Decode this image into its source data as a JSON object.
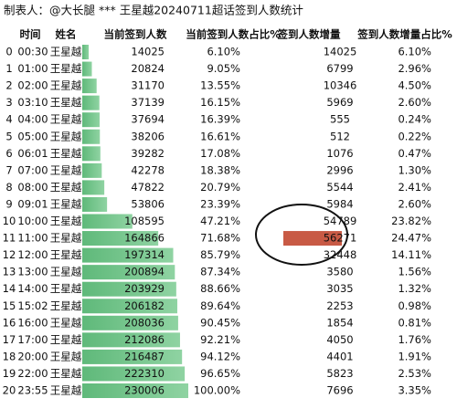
{
  "header": {
    "title": "制表人：@大长腿 *** 王星越20240711超话签到人数统计"
  },
  "table": {
    "columns": [
      "时间",
      "姓名",
      "当前签到人数",
      "当前签到人数占比%",
      "签到人数增量",
      "签到人数增量占比%"
    ],
    "rows": [
      [
        0,
        "00:30",
        "王星越",
        14025,
        "6.10%",
        14025,
        "6.10%"
      ],
      [
        1,
        "01:00",
        "王星越",
        20824,
        "9.05%",
        6799,
        "2.96%"
      ],
      [
        2,
        "02:00",
        "王星越",
        31170,
        "13.55%",
        10346,
        "4.50%"
      ],
      [
        3,
        "03:10",
        "王星越",
        37139,
        "16.15%",
        5969,
        "2.60%"
      ],
      [
        4,
        "04:00",
        "王星越",
        37694,
        "16.39%",
        555,
        "0.24%"
      ],
      [
        5,
        "05:00",
        "王星越",
        38206,
        "16.61%",
        512,
        "0.22%"
      ],
      [
        6,
        "06:01",
        "王星越",
        39282,
        "17.08%",
        1076,
        "0.47%"
      ],
      [
        7,
        "07:00",
        "王星越",
        42278,
        "18.38%",
        2996,
        "1.30%"
      ],
      [
        8,
        "08:00",
        "王星越",
        47822,
        "20.79%",
        5544,
        "2.41%"
      ],
      [
        9,
        "09:01",
        "王星越",
        53806,
        "23.39%",
        5984,
        "2.60%"
      ],
      [
        10,
        "10:00",
        "王星越",
        108595,
        "47.21%",
        54789,
        "23.82%"
      ],
      [
        11,
        "11:00",
        "王星越",
        164866,
        "71.68%",
        56271,
        "24.47%"
      ],
      [
        12,
        "12:00",
        "王星越",
        197314,
        "85.79%",
        32448,
        "14.11%"
      ],
      [
        13,
        "13:00",
        "王星越",
        200894,
        "87.34%",
        3580,
        "1.56%"
      ],
      [
        14,
        "14:00",
        "王星越",
        203929,
        "88.66%",
        3035,
        "1.32%"
      ],
      [
        15,
        "15:02",
        "王星越",
        206182,
        "89.64%",
        2253,
        "0.98%"
      ],
      [
        16,
        "16:00",
        "王星越",
        208036,
        "90.45%",
        1854,
        "0.81%"
      ],
      [
        17,
        "17:00",
        "王星越",
        212086,
        "92.21%",
        4050,
        "1.76%"
      ],
      [
        18,
        "20:00",
        "王星越",
        216487,
        "94.12%",
        4401,
        "1.91%"
      ],
      [
        19,
        "22:00",
        "王星越",
        222310,
        "96.65%",
        5823,
        "2.53%"
      ],
      [
        20,
        "23:55",
        "王星越",
        230006,
        "100.00%",
        7696,
        "3.35%"
      ]
    ]
  }
}
